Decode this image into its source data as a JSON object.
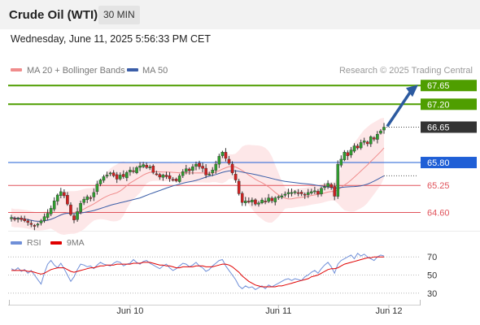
{
  "header": {
    "instrument": "Crude Oil (WTI)",
    "timeframe": "30 MIN",
    "datetime": "Wednesday, June 11, 2025 5:56:33 PM CET"
  },
  "legend": {
    "ma20_label": "MA 20 + Bollinger Bands",
    "ma50_label": "MA 50",
    "source": "Research © 2025 Trading Central",
    "ma20_color": "#f08c8c",
    "ma50_color": "#3b5ea8"
  },
  "rsi_legend": {
    "rsi_label": "RSI",
    "ma_label": "9MA",
    "rsi_color": "#6f8fd8",
    "ma_color": "#e00000"
  },
  "chart_data": {
    "type": "candlestick",
    "price_axis_range": [
      64.2,
      67.85
    ],
    "x_tick_labels": [
      "Jun 10",
      "Jun 11",
      "Jun 12"
    ],
    "levels": [
      {
        "value": 67.65,
        "label": "67.65",
        "kind": "resistance",
        "color": "#4f9e00"
      },
      {
        "value": 67.2,
        "label": "67.20",
        "kind": "resistance",
        "color": "#4f9e00"
      },
      {
        "value": 66.65,
        "label": "66.65",
        "kind": "last",
        "color": "#333333"
      },
      {
        "value": 65.8,
        "label": "65.80",
        "kind": "pivot",
        "color": "#1f5fd6"
      },
      {
        "value": 65.25,
        "label": "65.25",
        "kind": "support",
        "color": "#e0525a"
      },
      {
        "value": 64.6,
        "label": "64.60",
        "kind": "support",
        "color": "#e0525a"
      }
    ],
    "close": [
      64.48,
      64.45,
      64.46,
      64.43,
      64.4,
      64.36,
      64.31,
      64.27,
      64.32,
      64.4,
      64.5,
      64.58,
      64.7,
      64.88,
      65.02,
      65.1,
      65.0,
      64.8,
      64.55,
      64.42,
      64.62,
      64.82,
      64.92,
      64.98,
      64.95,
      65.08,
      65.28,
      65.38,
      65.46,
      65.5,
      65.55,
      65.48,
      65.4,
      65.5,
      65.46,
      65.56,
      65.62,
      65.58,
      65.68,
      65.72,
      65.75,
      65.68,
      65.7,
      65.56,
      65.52,
      65.45,
      65.5,
      65.46,
      65.41,
      65.38,
      65.36,
      65.48,
      65.58,
      65.65,
      65.6,
      65.7,
      65.76,
      65.7,
      65.66,
      65.5,
      65.52,
      65.62,
      65.76,
      65.95,
      66.05,
      65.9,
      65.78,
      65.55,
      65.38,
      65.05,
      64.84,
      64.88,
      64.86,
      64.9,
      64.8,
      64.83,
      64.9,
      64.86,
      64.95,
      64.88,
      64.95,
      64.98,
      65.0,
      65.04,
      65.08,
      65.08,
      65.1,
      65.06,
      65.05,
      65.02,
      65.08,
      65.1,
      65.12,
      65.04,
      65.18,
      65.22,
      65.3,
      65.2,
      64.99,
      65.76,
      65.88,
      66.05,
      65.96,
      66.1,
      66.2,
      66.15,
      66.28,
      66.32,
      66.25,
      66.42,
      66.36,
      66.48,
      66.56,
      66.65
    ],
    "rsi_axis_range": [
      20,
      80
    ],
    "rsi_ticks": [
      70,
      50,
      30
    ],
    "rsi": [
      57,
      55,
      58,
      54,
      56,
      52,
      55,
      50,
      45,
      40,
      52,
      62,
      66,
      61,
      58,
      63,
      57,
      50,
      43,
      48,
      56,
      62,
      61,
      59,
      60,
      57,
      61,
      64,
      62,
      61,
      60,
      63,
      65,
      64,
      60,
      62,
      63,
      67,
      64,
      62,
      65,
      66,
      63,
      61,
      59,
      57,
      60,
      62,
      58,
      55,
      57,
      60,
      63,
      62,
      59,
      61,
      64,
      60,
      58,
      54,
      56,
      60,
      63,
      66,
      67,
      60,
      55,
      50,
      45,
      38,
      35,
      38,
      36,
      37,
      34,
      36,
      38,
      35,
      39,
      37,
      39,
      41,
      43,
      45,
      46,
      44,
      46,
      45,
      44,
      48,
      50,
      53,
      55,
      52,
      57,
      61,
      64,
      59,
      52,
      62,
      66,
      68,
      70,
      72,
      68,
      74,
      71,
      73,
      70,
      68,
      66,
      70,
      72,
      71
    ],
    "rsi_ma": [
      55,
      55,
      55,
      55,
      55,
      54,
      54,
      53,
      52,
      51,
      52,
      54,
      56,
      57,
      58,
      58,
      58,
      56,
      54,
      53,
      54,
      55,
      56,
      57,
      58,
      58,
      59,
      60,
      60,
      61,
      61,
      61,
      62,
      62,
      62,
      62,
      62,
      63,
      63,
      63,
      64,
      64,
      64,
      63,
      62,
      61,
      61,
      60,
      60,
      59,
      58,
      58,
      59,
      59,
      59,
      59,
      60,
      60,
      60,
      59,
      59,
      59,
      60,
      61,
      62,
      62,
      61,
      59,
      56,
      53,
      49,
      46,
      43,
      41,
      39,
      38,
      37,
      37,
      37,
      37,
      37,
      38,
      38,
      39,
      40,
      41,
      42,
      43,
      44,
      45,
      46,
      48,
      49,
      50,
      52,
      54,
      56,
      57,
      57,
      58,
      60,
      62,
      63,
      64,
      65,
      66,
      67,
      68,
      69,
      69,
      70,
      70,
      70,
      70
    ]
  }
}
